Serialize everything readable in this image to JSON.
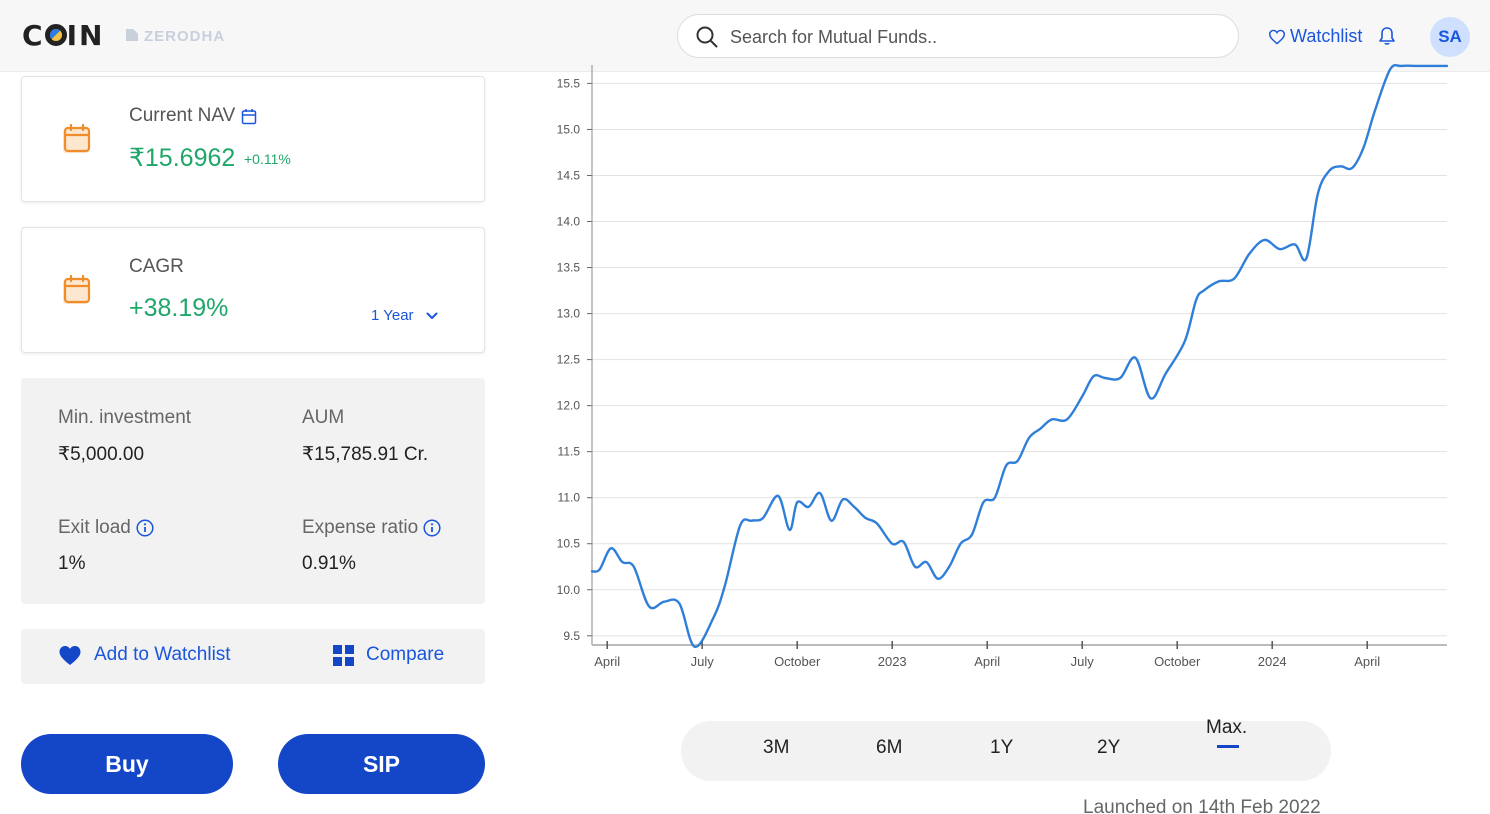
{
  "header": {
    "logo_text": "COIN",
    "brand_text": "ZERODHA",
    "search_placeholder": "Search for Mutual Funds..",
    "watchlist_label": "Watchlist",
    "avatar_initials": "SA"
  },
  "nav_card": {
    "label": "Current NAV",
    "value": "₹15.6962",
    "change": "+0.11%"
  },
  "cagr_card": {
    "label": "CAGR",
    "value": "+38.19%",
    "period": "1 Year"
  },
  "details": {
    "min_investment_label": "Min. investment",
    "min_investment_value": "₹5,000.00",
    "aum_label": "AUM",
    "aum_value": "₹15,785.91 Cr.",
    "exit_load_label": "Exit load",
    "exit_load_value": "1%",
    "expense_ratio_label": "Expense ratio",
    "expense_ratio_value": "0.91%"
  },
  "actions": {
    "add_watchlist": "Add to Watchlist",
    "compare": "Compare"
  },
  "buttons": {
    "buy": "Buy",
    "sip": "SIP"
  },
  "chart_data": {
    "type": "line",
    "title": "",
    "xlabel": "",
    "ylabel": "",
    "ylim": [
      9.4,
      15.7
    ],
    "y_ticks": [
      "9.5",
      "10.0",
      "10.5",
      "11.0",
      "11.5",
      "12.0",
      "12.5",
      "13.0",
      "13.5",
      "14.0",
      "14.5",
      "15.0",
      "15.5"
    ],
    "x_ticks": [
      "April",
      "July",
      "October",
      "2023",
      "April",
      "July",
      "October",
      "2024",
      "April"
    ],
    "x_tick_values": [
      2022.25,
      2022.5,
      2022.75,
      2023.0,
      2023.25,
      2023.5,
      2023.75,
      2024.0,
      2024.25
    ],
    "x": [
      2022.21,
      2022.23,
      2022.26,
      2022.29,
      2022.32,
      2022.36,
      2022.4,
      2022.44,
      2022.48,
      2022.53,
      2022.56,
      2022.6,
      2022.63,
      2022.66,
      2022.7,
      2022.73,
      2022.75,
      2022.78,
      2022.81,
      2022.84,
      2022.87,
      2022.9,
      2022.93,
      2022.96,
      2023.0,
      2023.03,
      2023.06,
      2023.09,
      2023.12,
      2023.15,
      2023.18,
      2023.21,
      2023.24,
      2023.27,
      2023.3,
      2023.33,
      2023.36,
      2023.39,
      2023.42,
      2023.46,
      2023.5,
      2023.53,
      2023.56,
      2023.6,
      2023.64,
      2023.68,
      2023.72,
      2023.77,
      2023.8,
      2023.82,
      2023.86,
      2023.9,
      2023.94,
      2023.98,
      2024.02,
      2024.06,
      2024.09,
      2024.12,
      2024.15,
      2024.18,
      2024.21,
      2024.24,
      2024.27,
      2024.31,
      2024.34,
      2024.38,
      2024.41,
      2024.44,
      2024.46
    ],
    "values": [
      10.2,
      10.22,
      10.45,
      10.3,
      10.25,
      9.82,
      9.87,
      9.85,
      9.38,
      9.7,
      10.05,
      10.7,
      10.75,
      10.78,
      11.02,
      10.65,
      10.95,
      10.9,
      11.05,
      10.75,
      10.98,
      10.9,
      10.78,
      10.72,
      10.5,
      10.52,
      10.25,
      10.3,
      10.12,
      10.25,
      10.5,
      10.6,
      10.95,
      11.0,
      11.35,
      11.4,
      11.65,
      11.75,
      11.85,
      11.85,
      12.1,
      12.32,
      12.3,
      12.3,
      12.52,
      12.08,
      12.35,
      12.7,
      13.15,
      13.25,
      13.35,
      13.38,
      13.65,
      13.8,
      13.7,
      13.75,
      13.6,
      14.3,
      14.55,
      14.6,
      14.58,
      14.8,
      15.2,
      15.65,
      15.69,
      15.69,
      15.69,
      15.69,
      15.69
    ],
    "grid": true,
    "legend": "none"
  },
  "ranges": [
    "3M",
    "6M",
    "1Y",
    "2Y",
    "Max."
  ],
  "active_range": "Max.",
  "launched_text": "Launched on 14th Feb 2022",
  "colors": {
    "accent": "#1447c8",
    "positive": "#1ea769",
    "line": "#2f7fd9",
    "calendar": "#f08c2a"
  }
}
